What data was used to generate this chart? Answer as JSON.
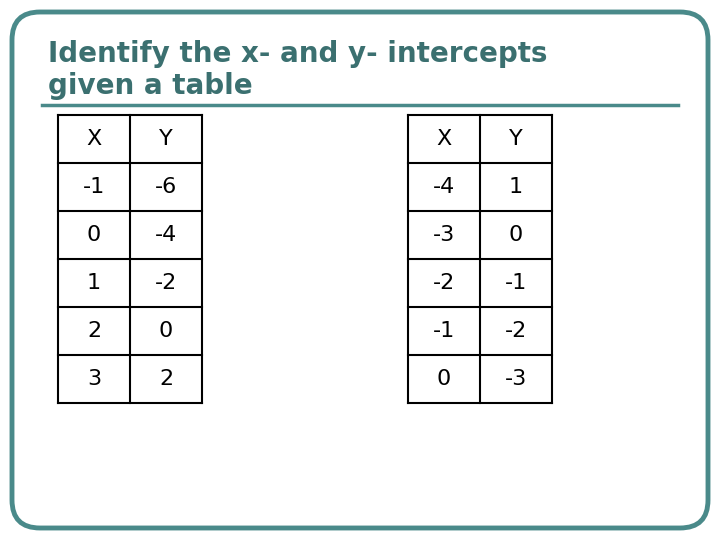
{
  "title_line1": "Identify the x- and y- intercepts",
  "title_line2": "given a table",
  "title_color": "#3b7070",
  "bg_color": "#ffffff",
  "border_color": "#4a8a8a",
  "table1_headers": [
    "X",
    "Y"
  ],
  "table1_data": [
    [
      "-1",
      "-6"
    ],
    [
      "0",
      "-4"
    ],
    [
      "1",
      "-2"
    ],
    [
      "2",
      "0"
    ],
    [
      "3",
      "2"
    ]
  ],
  "table2_headers": [
    "X",
    "Y"
  ],
  "table2_data": [
    [
      "-4",
      "1"
    ],
    [
      "-3",
      "0"
    ],
    [
      "-2",
      "-1"
    ],
    [
      "-1",
      "-2"
    ],
    [
      "0",
      "-3"
    ]
  ],
  "table_text_color": "#000000",
  "separator_color": "#4a8a8a",
  "title_fontsize": 20,
  "table_fontsize": 16,
  "fig_width": 7.2,
  "fig_height": 5.4,
  "dpi": 100
}
